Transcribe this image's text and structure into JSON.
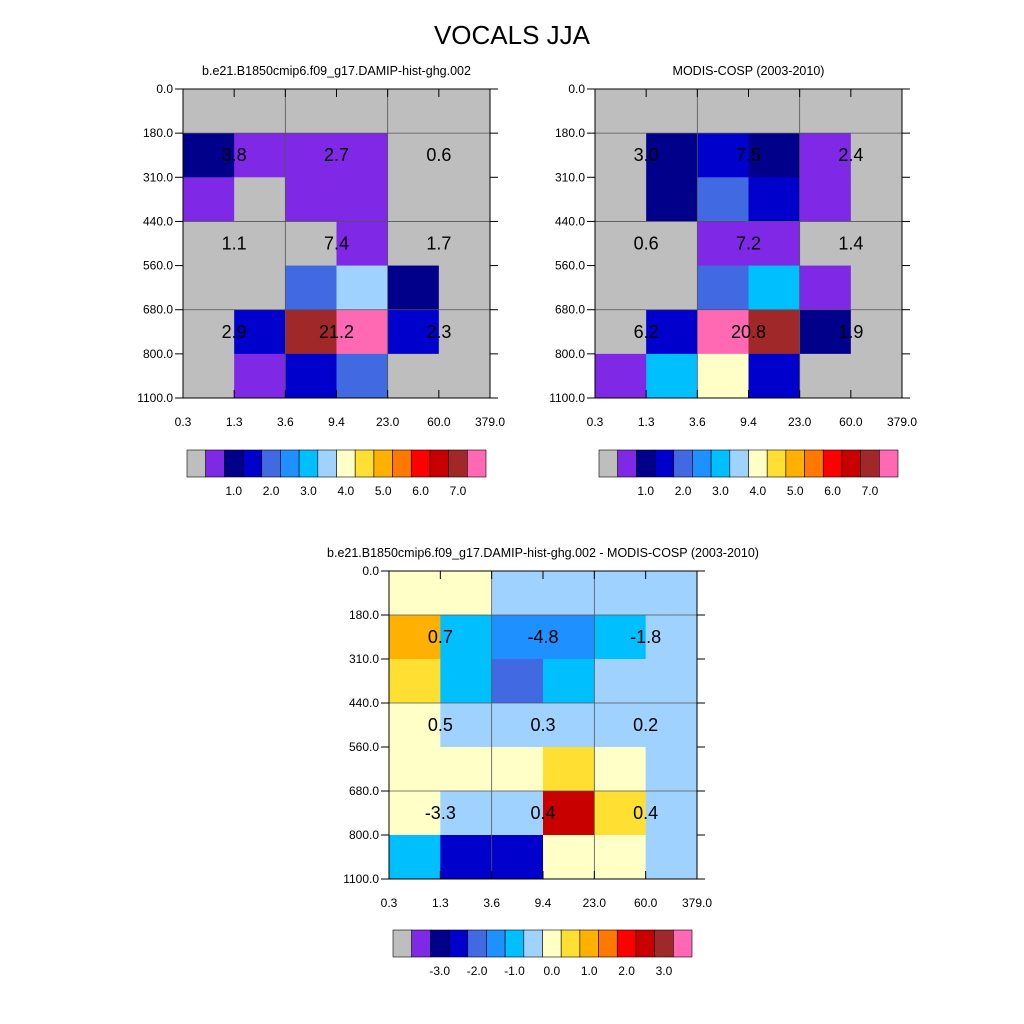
{
  "title": "VOCALS JJA",
  "y_ticks": [
    "0.0",
    "180.0",
    "310.0",
    "440.0",
    "560.0",
    "680.0",
    "800.0",
    "1100.0"
  ],
  "x_ticks": [
    "0.3",
    "1.3",
    "3.6",
    "9.4",
    "23.0",
    "60.0",
    "379.0"
  ],
  "colors": {
    "gray": "#bebebe",
    "purple": "#7f28e6",
    "navy": "#00008b",
    "blue": "#0000cd",
    "royal": "#4169e1",
    "dodger": "#1e90ff",
    "deepsky": "#00bfff",
    "lightsky": "#a0d2ff",
    "cream": "#ffffc8",
    "yellow": "#ffe032",
    "gold": "#ffb000",
    "orange": "#ff7800",
    "red": "#ff0000",
    "crimson": "#c80000",
    "brown": "#a02828",
    "pink": "#ff69b4"
  },
  "chart_data": [
    {
      "type": "heatmap",
      "title": "b.e21.B1850cmip6.f09_g17.DAMIP-hist-ghg.002",
      "x_ticks": [
        "0.3",
        "1.3",
        "3.6",
        "9.4",
        "23.0",
        "60.0",
        "379.0"
      ],
      "y_ticks": [
        "0.0",
        "180.0",
        "310.0",
        "440.0",
        "560.0",
        "680.0",
        "800.0",
        "1100.0"
      ],
      "cell_colors": [
        [
          "gray",
          "gray",
          "gray",
          "gray",
          "gray",
          "gray"
        ],
        [
          "navy",
          "purple",
          "purple",
          "purple",
          "gray",
          "gray"
        ],
        [
          "purple",
          "gray",
          "purple",
          "purple",
          "gray",
          "gray"
        ],
        [
          "gray",
          "gray",
          "gray",
          "purple",
          "gray",
          "gray"
        ],
        [
          "gray",
          "gray",
          "royal",
          "lightsky",
          "navy",
          "gray"
        ],
        [
          "gray",
          "blue",
          "brown",
          "pink",
          "blue",
          "gray"
        ],
        [
          "gray",
          "purple",
          "blue",
          "royal",
          "gray",
          "gray"
        ]
      ],
      "group_values": [
        [
          "3.8",
          "2.7",
          "0.6"
        ],
        [
          "1.1",
          "7.4",
          "1.7"
        ],
        [
          "2.9",
          "21.2",
          "2.3"
        ]
      ],
      "legend": {
        "colors": [
          "gray",
          "purple",
          "navy",
          "blue",
          "royal",
          "dodger",
          "deepsky",
          "lightsky",
          "cream",
          "yellow",
          "gold",
          "orange",
          "red",
          "crimson",
          "brown",
          "pink"
        ],
        "labels": [
          "1.0",
          "2.0",
          "3.0",
          "4.0",
          "5.0",
          "6.0",
          "7.0"
        ]
      }
    },
    {
      "type": "heatmap",
      "title": "MODIS-COSP (2003-2010)",
      "x_ticks": [
        "0.3",
        "1.3",
        "3.6",
        "9.4",
        "23.0",
        "60.0",
        "379.0"
      ],
      "y_ticks": [
        "0.0",
        "180.0",
        "310.0",
        "440.0",
        "560.0",
        "680.0",
        "800.0",
        "1100.0"
      ],
      "cell_colors": [
        [
          "gray",
          "gray",
          "gray",
          "gray",
          "gray",
          "gray"
        ],
        [
          "gray",
          "navy",
          "blue",
          "navy",
          "purple",
          "gray"
        ],
        [
          "gray",
          "navy",
          "royal",
          "blue",
          "purple",
          "gray"
        ],
        [
          "gray",
          "gray",
          "purple",
          "purple",
          "gray",
          "gray"
        ],
        [
          "gray",
          "gray",
          "royal",
          "deepsky",
          "purple",
          "gray"
        ],
        [
          "gray",
          "blue",
          "pink",
          "brown",
          "navy",
          "gray"
        ],
        [
          "purple",
          "deepsky",
          "cream",
          "blue",
          "gray",
          "gray"
        ]
      ],
      "group_values": [
        [
          "3.0",
          "7.5",
          "2.4"
        ],
        [
          "0.6",
          "7.2",
          "1.4"
        ],
        [
          "6.2",
          "20.8",
          "1.9"
        ]
      ],
      "legend": {
        "colors": [
          "gray",
          "purple",
          "navy",
          "blue",
          "royal",
          "dodger",
          "deepsky",
          "lightsky",
          "cream",
          "yellow",
          "gold",
          "orange",
          "red",
          "crimson",
          "brown",
          "pink"
        ],
        "labels": [
          "1.0",
          "2.0",
          "3.0",
          "4.0",
          "5.0",
          "6.0",
          "7.0"
        ]
      }
    },
    {
      "type": "heatmap",
      "title": "b.e21.B1850cmip6.f09_g17.DAMIP-hist-ghg.002 - MODIS-COSP (2003-2010)",
      "x_ticks": [
        "0.3",
        "1.3",
        "3.6",
        "9.4",
        "23.0",
        "60.0",
        "379.0"
      ],
      "y_ticks": [
        "0.0",
        "180.0",
        "310.0",
        "440.0",
        "560.0",
        "680.0",
        "800.0",
        "1100.0"
      ],
      "cell_colors": [
        [
          "cream",
          "cream",
          "lightsky",
          "lightsky",
          "lightsky",
          "lightsky"
        ],
        [
          "gold",
          "deepsky",
          "dodger",
          "dodger",
          "deepsky",
          "lightsky"
        ],
        [
          "yellow",
          "deepsky",
          "royal",
          "deepsky",
          "lightsky",
          "lightsky"
        ],
        [
          "cream",
          "lightsky",
          "lightsky",
          "lightsky",
          "lightsky",
          "lightsky"
        ],
        [
          "cream",
          "cream",
          "cream",
          "yellow",
          "cream",
          "lightsky"
        ],
        [
          "cream",
          "lightsky",
          "lightsky",
          "crimson",
          "yellow",
          "lightsky"
        ],
        [
          "deepsky",
          "blue",
          "blue",
          "cream",
          "cream",
          "lightsky"
        ]
      ],
      "group_values": [
        [
          "0.7",
          "-4.8",
          "-1.8"
        ],
        [
          "0.5",
          "0.3",
          "0.2"
        ],
        [
          "-3.3",
          "0.4",
          "0.4"
        ]
      ],
      "legend": {
        "colors": [
          "gray",
          "purple",
          "navy",
          "blue",
          "royal",
          "dodger",
          "deepsky",
          "lightsky",
          "cream",
          "yellow",
          "gold",
          "orange",
          "red",
          "crimson",
          "brown",
          "pink"
        ],
        "labels": [
          "-3.0",
          "-2.0",
          "-1.0",
          "0.0",
          "1.0",
          "2.0",
          "3.0"
        ]
      }
    }
  ]
}
